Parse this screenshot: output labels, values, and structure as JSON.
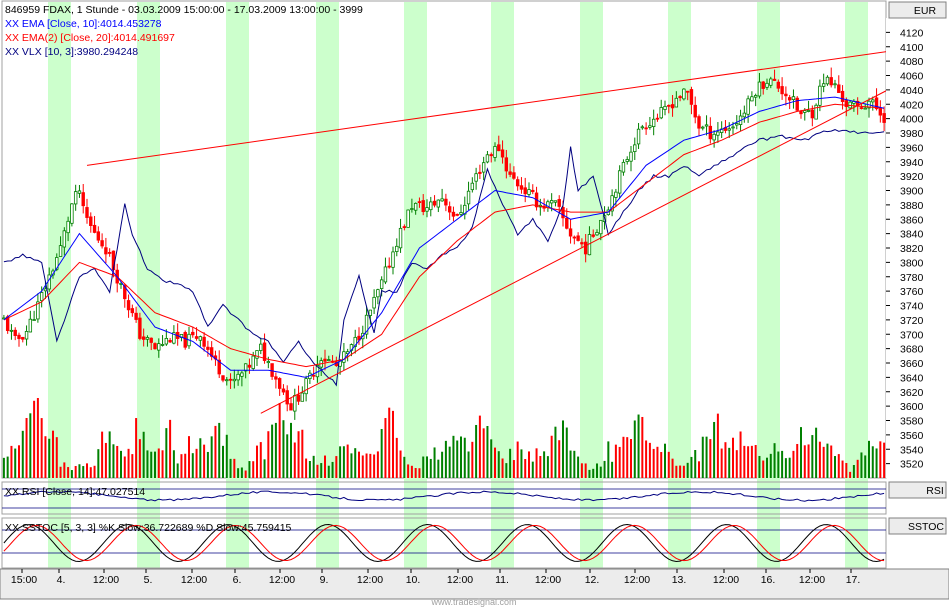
{
  "header": {
    "line": "846959  FDAX, 1 Stunde - 03.03.2009 15:00:00 - 17.03.2009 13:00:00 - 3999",
    "ema10": "XX EMA [Close, 10]:4014.453278",
    "ema20": "XX EMA(2) [Close, 20]:4014.491697",
    "vlx": "XX VLX [10, 3]:3980.294248"
  },
  "rsi_header": "XX RSI [Close, 14]:47.027514",
  "sstoc_header": "XX SSTOC [5, 3, 3] %K Slow:36.722689  %D Slow:45.759415",
  "axis_badges": {
    "currency": "EUR",
    "rsi": "RSI",
    "sstoc": "SSTOC"
  },
  "watermark": "www.tradesignal.com",
  "colors": {
    "bull": "#008000",
    "bear": "#ff0000",
    "ema10": "#0000ff",
    "ema20": "#ff0000",
    "vlx": "#000080",
    "highlight": "#ccffcc",
    "trendline": "#ff0000",
    "header_blue": "#0000ff"
  },
  "chart_data": {
    "type": "candlestick",
    "title": "846959  FDAX, 1 Stunde - 03.03.2009 15:00:00 - 17.03.2009 13:00:00 - 3999",
    "ylabel": "EUR",
    "ylim": [
      3500,
      4140
    ],
    "y_ticks": [
      4120,
      4100,
      4080,
      4060,
      4040,
      4020,
      4000,
      3980,
      3960,
      3940,
      3920,
      3900,
      3880,
      3860,
      3840,
      3820,
      3800,
      3780,
      3760,
      3740,
      3720,
      3700,
      3680,
      3660,
      3640,
      3620,
      3600,
      3580,
      3560,
      3540,
      3520
    ],
    "x_ticks": [
      "15:00",
      "4.",
      "12:00",
      "5.",
      "12:00",
      "6.",
      "12:00",
      "9.",
      "12:00",
      "10.",
      "12:00",
      "11.",
      "12:00",
      "12.",
      "12:00",
      "13.",
      "12:00",
      "16.",
      "12:00",
      "17."
    ],
    "close_path": [
      [
        0,
        3720
      ],
      [
        3,
        3690
      ],
      [
        6,
        3705
      ],
      [
        9,
        3740
      ],
      [
        12,
        3780
      ],
      [
        15,
        3820
      ],
      [
        18,
        3880
      ],
      [
        20,
        3900
      ],
      [
        21,
        3870
      ],
      [
        24,
        3840
      ],
      [
        27,
        3820
      ],
      [
        30,
        3780
      ],
      [
        33,
        3740
      ],
      [
        36,
        3700
      ],
      [
        40,
        3680
      ],
      [
        44,
        3695
      ],
      [
        48,
        3690
      ],
      [
        52,
        3700
      ],
      [
        56,
        3660
      ],
      [
        60,
        3630
      ],
      [
        64,
        3650
      ],
      [
        68,
        3680
      ],
      [
        72,
        3640
      ],
      [
        76,
        3600
      ],
      [
        80,
        3630
      ],
      [
        84,
        3670
      ],
      [
        88,
        3655
      ],
      [
        92,
        3680
      ],
      [
        96,
        3720
      ],
      [
        100,
        3770
      ],
      [
        104,
        3830
      ],
      [
        108,
        3880
      ],
      [
        112,
        3875
      ],
      [
        116,
        3890
      ],
      [
        120,
        3860
      ],
      [
        124,
        3910
      ],
      [
        128,
        3950
      ],
      [
        131,
        3960
      ],
      [
        134,
        3920
      ],
      [
        138,
        3900
      ],
      [
        142,
        3880
      ],
      [
        146,
        3880
      ],
      [
        150,
        3840
      ],
      [
        154,
        3820
      ],
      [
        157,
        3850
      ],
      [
        160,
        3880
      ],
      [
        163,
        3920
      ],
      [
        166,
        3960
      ],
      [
        169,
        3990
      ],
      [
        172,
        4000
      ],
      [
        175,
        4010
      ],
      [
        178,
        4030
      ],
      [
        181,
        4035
      ],
      [
        184,
        3990
      ],
      [
        187,
        3980
      ],
      [
        190,
        3985
      ],
      [
        193,
        3990
      ],
      [
        196,
        4010
      ],
      [
        199,
        4040
      ],
      [
        202,
        4055
      ],
      [
        205,
        4045
      ],
      [
        208,
        4030
      ],
      [
        211,
        4005
      ],
      [
        214,
        4010
      ],
      [
        217,
        4055
      ],
      [
        220,
        4045
      ],
      [
        223,
        4020
      ],
      [
        226,
        4015
      ],
      [
        229,
        4025
      ],
      [
        233,
        4003
      ]
    ],
    "ema10_path": [
      [
        0,
        3720
      ],
      [
        10,
        3760
      ],
      [
        20,
        3840
      ],
      [
        30,
        3780
      ],
      [
        40,
        3710
      ],
      [
        50,
        3690
      ],
      [
        60,
        3650
      ],
      [
        70,
        3650
      ],
      [
        80,
        3640
      ],
      [
        90,
        3665
      ],
      [
        100,
        3730
      ],
      [
        110,
        3820
      ],
      [
        120,
        3860
      ],
      [
        130,
        3900
      ],
      [
        140,
        3890
      ],
      [
        150,
        3860
      ],
      [
        160,
        3870
      ],
      [
        170,
        3935
      ],
      [
        180,
        3970
      ],
      [
        190,
        3985
      ],
      [
        200,
        4010
      ],
      [
        210,
        4025
      ],
      [
        220,
        4030
      ],
      [
        233,
        4014.45
      ]
    ],
    "ema20_path": [
      [
        0,
        3720
      ],
      [
        10,
        3745
      ],
      [
        20,
        3800
      ],
      [
        30,
        3780
      ],
      [
        40,
        3730
      ],
      [
        50,
        3710
      ],
      [
        60,
        3680
      ],
      [
        70,
        3665
      ],
      [
        80,
        3655
      ],
      [
        90,
        3665
      ],
      [
        100,
        3700
      ],
      [
        110,
        3780
      ],
      [
        120,
        3830
      ],
      [
        130,
        3870
      ],
      [
        140,
        3880
      ],
      [
        150,
        3870
      ],
      [
        160,
        3870
      ],
      [
        170,
        3910
      ],
      [
        180,
        3950
      ],
      [
        190,
        3970
      ],
      [
        200,
        3995
      ],
      [
        210,
        4010
      ],
      [
        220,
        4020
      ],
      [
        233,
        4014.49
      ]
    ],
    "vlx_path": [
      [
        0,
        3800
      ],
      [
        5,
        3810
      ],
      [
        10,
        3800
      ],
      [
        14,
        3690
      ],
      [
        16,
        3720
      ],
      [
        20,
        3780
      ],
      [
        24,
        3790
      ],
      [
        28,
        3760
      ],
      [
        32,
        3880
      ],
      [
        34,
        3840
      ],
      [
        38,
        3790
      ],
      [
        42,
        3775
      ],
      [
        46,
        3770
      ],
      [
        50,
        3760
      ],
      [
        54,
        3710
      ],
      [
        58,
        3740
      ],
      [
        62,
        3720
      ],
      [
        66,
        3700
      ],
      [
        70,
        3690
      ],
      [
        74,
        3660
      ],
      [
        78,
        3690
      ],
      [
        82,
        3660
      ],
      [
        86,
        3640
      ],
      [
        88,
        3630
      ],
      [
        90,
        3720
      ],
      [
        94,
        3780
      ],
      [
        98,
        3700
      ],
      [
        100,
        3760
      ],
      [
        104,
        3760
      ],
      [
        108,
        3800
      ],
      [
        112,
        3790
      ],
      [
        116,
        3810
      ],
      [
        120,
        3820
      ],
      [
        124,
        3850
      ],
      [
        128,
        3930
      ],
      [
        132,
        3880
      ],
      [
        136,
        3840
      ],
      [
        140,
        3860
      ],
      [
        144,
        3830
      ],
      [
        148,
        3880
      ],
      [
        150,
        3960
      ],
      [
        152,
        3900
      ],
      [
        156,
        3920
      ],
      [
        160,
        3840
      ],
      [
        164,
        3870
      ],
      [
        168,
        3900
      ],
      [
        172,
        3920
      ],
      [
        176,
        3920
      ],
      [
        180,
        3935
      ],
      [
        184,
        3920
      ],
      [
        188,
        3935
      ],
      [
        192,
        3945
      ],
      [
        196,
        3960
      ],
      [
        200,
        3970
      ],
      [
        206,
        3975
      ],
      [
        212,
        3970
      ],
      [
        216,
        3980
      ],
      [
        220,
        3985
      ],
      [
        226,
        3980
      ],
      [
        233,
        3980.29
      ]
    ],
    "volume_peak": [
      9,
      15,
      12,
      7,
      5,
      11,
      6,
      14,
      18,
      10,
      8,
      13,
      7,
      9,
      16,
      11,
      6,
      12,
      10,
      8,
      14,
      7,
      9,
      11,
      8,
      13,
      15,
      10,
      7,
      12,
      9,
      6,
      11,
      14,
      8,
      10,
      7,
      13,
      9,
      12,
      16,
      8,
      11,
      10,
      7,
      9,
      14,
      12,
      8,
      10
    ],
    "rsi": {
      "value": 47.027514,
      "levels": [
        70,
        30
      ]
    },
    "sstoc": {
      "k_slow": 36.722689,
      "d_slow": 45.759415,
      "levels": [
        80,
        20
      ]
    },
    "trendlines": [
      {
        "from": [
          22,
          3935
        ],
        "to": [
          236,
          4095
        ]
      },
      {
        "from": [
          68,
          3590
        ],
        "to": [
          234,
          4040
        ]
      }
    ],
    "highlight_sessions": 10,
    "grid": false
  }
}
